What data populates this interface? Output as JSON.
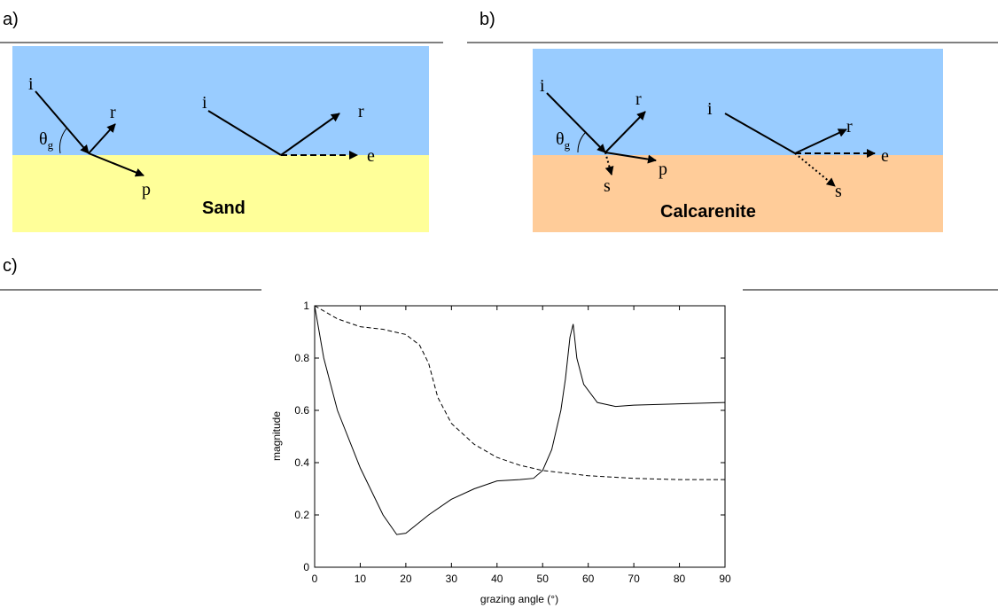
{
  "diagrams": [
    {
      "label": "a)",
      "material": "Sand",
      "left": {
        "i": "i",
        "r": "r",
        "p": "p",
        "theta": "θ",
        "theta_sub": "g"
      },
      "right": {
        "i": "i",
        "r": "r",
        "e": "e"
      }
    },
    {
      "label": "b)",
      "material": "Calcarenite",
      "left": {
        "i": "i",
        "r": "r",
        "p": "p",
        "s": "s",
        "theta": "θ",
        "theta_sub": "g"
      },
      "right": {
        "i": "i",
        "r": "r",
        "e": "e",
        "s": "s"
      }
    }
  ],
  "panel_c": {
    "label": "c)"
  },
  "chart_data": {
    "type": "line",
    "x_label": "grazing angle (°)",
    "y_label": "magnitude",
    "xlim": [
      0,
      90
    ],
    "ylim": [
      0,
      1
    ],
    "xticks": [
      0,
      10,
      20,
      30,
      40,
      50,
      60,
      70,
      80,
      90
    ],
    "yticks": [
      0,
      0.2,
      0.4,
      0.6,
      0.8,
      1
    ],
    "series": [
      {
        "color": "#000000",
        "dash": false,
        "x": [
          0,
          2,
          5,
          10,
          15,
          18,
          20,
          25,
          30,
          35,
          40,
          45,
          48,
          50,
          52,
          54,
          55,
          56,
          56.7,
          57.5,
          59,
          62,
          66,
          70,
          80,
          90
        ],
        "values": [
          1,
          0.8,
          0.6,
          0.38,
          0.2,
          0.125,
          0.13,
          0.2,
          0.26,
          0.3,
          0.33,
          0.335,
          0.34,
          0.37,
          0.45,
          0.6,
          0.72,
          0.88,
          0.93,
          0.8,
          0.7,
          0.63,
          0.615,
          0.62,
          0.625,
          0.63
        ]
      },
      {
        "color": "#000000",
        "dash": true,
        "x": [
          0,
          5,
          10,
          15,
          20,
          23,
          25,
          27,
          30,
          35,
          40,
          45,
          50,
          60,
          70,
          80,
          90
        ],
        "values": [
          1,
          0.95,
          0.92,
          0.91,
          0.89,
          0.85,
          0.78,
          0.65,
          0.55,
          0.47,
          0.42,
          0.39,
          0.37,
          0.35,
          0.34,
          0.335,
          0.335
        ]
      }
    ]
  }
}
